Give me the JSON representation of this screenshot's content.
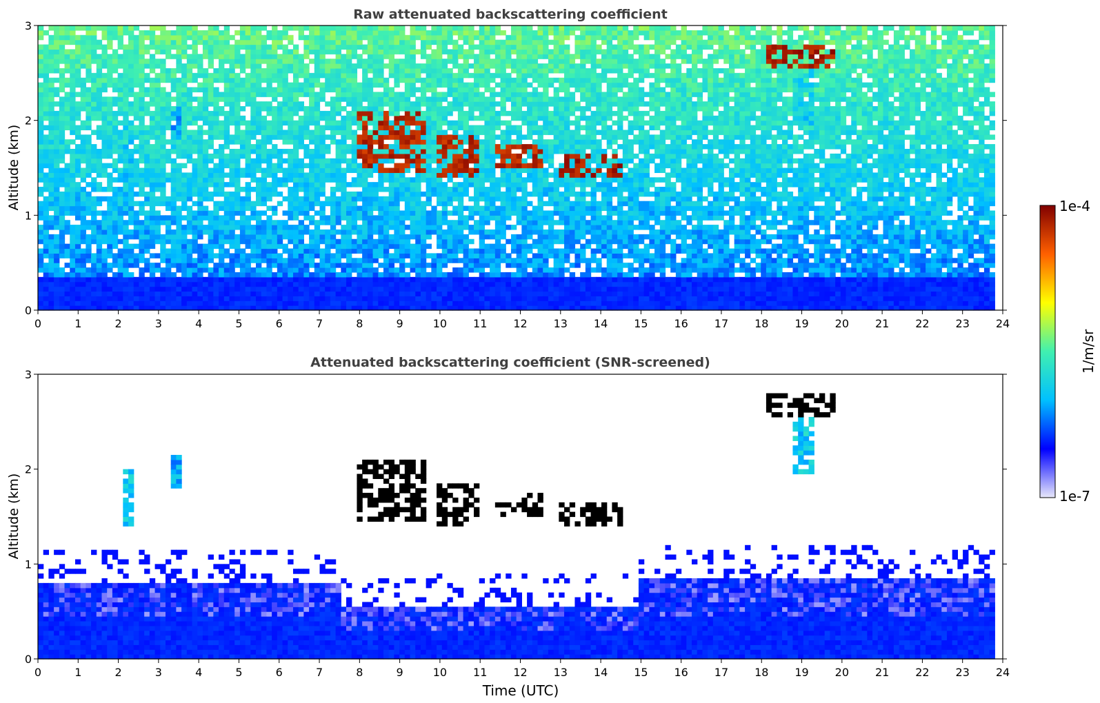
{
  "chart_data": [
    {
      "type": "heatmap",
      "title": "Raw attenuated backscattering coefficient",
      "xlabel": "",
      "ylabel": "Altitude (km)",
      "xlim": [
        0,
        24
      ],
      "ylim": [
        0,
        3
      ],
      "xticks": [
        "0",
        "1",
        "2",
        "3",
        "4",
        "5",
        "6",
        "7",
        "8",
        "9",
        "10",
        "11",
        "12",
        "13",
        "14",
        "15",
        "16",
        "17",
        "18",
        "19",
        "20",
        "21",
        "22",
        "23",
        "24"
      ],
      "yticks": [
        "0",
        "1",
        "2",
        "3"
      ],
      "data_end_time": 23.8,
      "noise": "strong above ~0.3 km, increasing with altitude",
      "boundary_layer": [
        {
          "from": 0,
          "to": 23.8,
          "top_km": 0.35
        }
      ],
      "features": [
        {
          "kind": "aerosol",
          "time_start": 2.1,
          "time_end": 2.35,
          "alt_bottom_km": 1.4,
          "alt_top_km": 2.0,
          "level": 0.45
        },
        {
          "kind": "aerosol",
          "time_start": 3.3,
          "time_end": 3.55,
          "alt_bottom_km": 1.8,
          "alt_top_km": 2.15,
          "level": 0.4
        },
        {
          "kind": "cloud",
          "time_start": 7.9,
          "time_end": 9.6,
          "alt_bottom_km": 1.45,
          "alt_top_km": 2.1,
          "level": 0.97
        },
        {
          "kind": "cloud",
          "time_start": 9.9,
          "time_end": 11.0,
          "alt_bottom_km": 1.4,
          "alt_top_km": 1.85,
          "level": 0.97
        },
        {
          "kind": "cloud",
          "time_start": 11.4,
          "time_end": 12.6,
          "alt_bottom_km": 1.5,
          "alt_top_km": 1.75,
          "level": 0.97
        },
        {
          "kind": "cloud",
          "time_start": 12.9,
          "time_end": 14.6,
          "alt_bottom_km": 1.38,
          "alt_top_km": 1.65,
          "level": 0.99
        },
        {
          "kind": "cloud",
          "time_start": 18.1,
          "time_end": 19.8,
          "alt_bottom_km": 2.55,
          "alt_top_km": 2.8,
          "level": 0.99
        },
        {
          "kind": "aerosol",
          "time_start": 18.8,
          "time_end": 19.3,
          "alt_bottom_km": 1.95,
          "alt_top_km": 2.55,
          "level": 0.45
        }
      ]
    },
    {
      "type": "heatmap",
      "title": "Attenuated backscattering coefficient (SNR-screened)",
      "xlabel": "Time (UTC)",
      "ylabel": "Altitude (km)",
      "xlim": [
        0,
        24
      ],
      "ylim": [
        0,
        3
      ],
      "xticks": [
        "0",
        "1",
        "2",
        "3",
        "4",
        "5",
        "6",
        "7",
        "8",
        "9",
        "10",
        "11",
        "12",
        "13",
        "14",
        "15",
        "16",
        "17",
        "18",
        "19",
        "20",
        "21",
        "22",
        "23",
        "24"
      ],
      "yticks": [
        "0",
        "1",
        "2",
        "3"
      ],
      "data_end_time": 23.8,
      "noise": "screened (low-SNR pixels removed)",
      "boundary_layer": [
        {
          "from": 0,
          "to": 7.5,
          "top_km": 0.8
        },
        {
          "from": 7.5,
          "to": 15.0,
          "top_km": 0.55
        },
        {
          "from": 15.0,
          "to": 23.8,
          "top_km": 0.85
        }
      ],
      "features": [
        {
          "kind": "aerosol",
          "time_start": 2.1,
          "time_end": 2.35,
          "alt_bottom_km": 1.4,
          "alt_top_km": 2.0,
          "level": 0.45
        },
        {
          "kind": "aerosol",
          "time_start": 3.35,
          "time_end": 3.55,
          "alt_bottom_km": 1.8,
          "alt_top_km": 2.15,
          "level": 0.4
        },
        {
          "kind": "cloud",
          "time_start": 7.9,
          "time_end": 9.6,
          "alt_bottom_km": 1.45,
          "alt_top_km": 2.1,
          "level": 1.0
        },
        {
          "kind": "cloud",
          "time_start": 9.9,
          "time_end": 11.0,
          "alt_bottom_km": 1.4,
          "alt_top_km": 1.85,
          "level": 1.0
        },
        {
          "kind": "cloud",
          "time_start": 11.4,
          "time_end": 12.6,
          "alt_bottom_km": 1.5,
          "alt_top_km": 1.75,
          "level": 1.0
        },
        {
          "kind": "cloud",
          "time_start": 12.9,
          "time_end": 14.6,
          "alt_bottom_km": 1.38,
          "alt_top_km": 1.65,
          "level": 1.0
        },
        {
          "kind": "cloud",
          "time_start": 18.1,
          "time_end": 19.8,
          "alt_bottom_km": 2.55,
          "alt_top_km": 2.8,
          "level": 1.0
        },
        {
          "kind": "aerosol",
          "time_start": 18.8,
          "time_end": 19.3,
          "alt_bottom_km": 1.95,
          "alt_top_km": 2.55,
          "level": 0.45
        }
      ]
    }
  ],
  "colorbar": {
    "label": "1/m/sr",
    "max_label": "1e-4",
    "min_label": "1e-7",
    "colormap": "jet (lowest bins light lavender)",
    "colors": [
      "#e8e8fa",
      "#0000ff",
      "#00c0ff",
      "#40f0b0",
      "#ffff00",
      "#ff6000",
      "#800000"
    ]
  }
}
